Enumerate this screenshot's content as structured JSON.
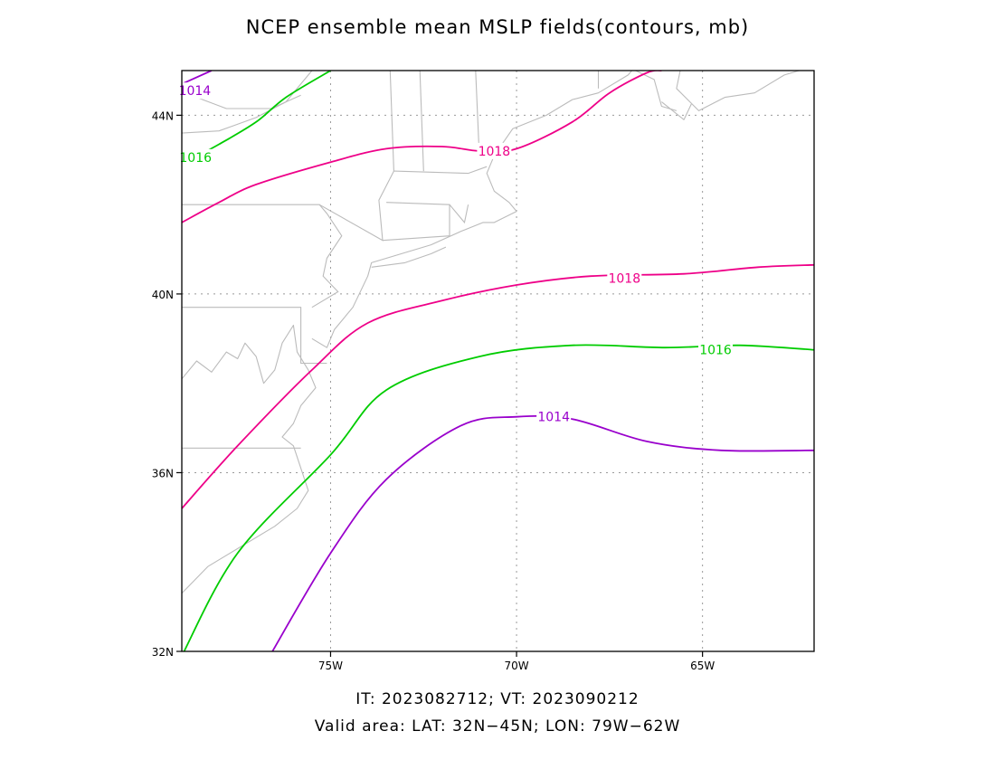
{
  "title": "NCEP ensemble mean MSLP fields(contours, mb)",
  "footer": {
    "line1": "IT: 2023082712; VT: 2023090212",
    "line2": "Valid area: LAT: 32N−45N; LON: 79W−62W"
  },
  "map": {
    "lon_range": [
      -79,
      -62
    ],
    "lat_range": [
      32,
      45
    ],
    "lat_ticks": [
      {
        "value": 32,
        "label": "32N"
      },
      {
        "value": 36,
        "label": "36N"
      },
      {
        "value": 40,
        "label": "40N"
      },
      {
        "value": 44,
        "label": "44N"
      }
    ],
    "lon_ticks": [
      {
        "value": -75,
        "label": "75W"
      },
      {
        "value": -70,
        "label": "70W"
      },
      {
        "value": -65,
        "label": "65W"
      }
    ],
    "grid": "dotted",
    "coast_color": "#bbbbbb",
    "contours": [
      {
        "level": 1014,
        "label": "1014",
        "color": "#9900cc",
        "points": [
          [
            -79,
            44.7
          ],
          [
            -78.2,
            45
          ]
        ],
        "label_at": [
          -78.65,
          44.55
        ]
      },
      {
        "level": 1016,
        "label": "1016",
        "color": "#00cc00",
        "points": [
          [
            -79,
            42.9
          ],
          [
            -78,
            43.35
          ],
          [
            -77,
            43.85
          ],
          [
            -76.2,
            44.4
          ],
          [
            -75,
            45
          ]
        ],
        "label_at": [
          -78.63,
          43.06
        ]
      },
      {
        "level": 1018,
        "label": "1018",
        "color": "#ee0088",
        "points": [
          [
            -79,
            41.6
          ],
          [
            -78,
            42.05
          ],
          [
            -77,
            42.45
          ],
          [
            -75,
            42.95
          ],
          [
            -73.5,
            43.25
          ],
          [
            -72,
            43.3
          ],
          [
            -71,
            43.2
          ],
          [
            -70,
            43.25
          ],
          [
            -68.5,
            43.85
          ],
          [
            -67.5,
            44.5
          ],
          [
            -66.5,
            44.95
          ],
          [
            -66.1,
            45
          ]
        ],
        "label_at": [
          -70.6,
          43.2
        ]
      },
      {
        "level": 1018,
        "label": "1018",
        "color": "#ee0088",
        "points": [
          [
            -79,
            35.2
          ],
          [
            -77.5,
            36.6
          ],
          [
            -75.5,
            38.3
          ],
          [
            -74,
            39.35
          ],
          [
            -72,
            39.85
          ],
          [
            -70,
            40.2
          ],
          [
            -68,
            40.4
          ],
          [
            -65.5,
            40.45
          ],
          [
            -63.5,
            40.6
          ],
          [
            -62,
            40.65
          ]
        ],
        "label_at": [
          -67.1,
          40.35
        ]
      },
      {
        "level": 1016,
        "label": "1016",
        "color": "#00cc00",
        "points": [
          [
            -79,
            31.9
          ],
          [
            -77.5,
            34.2
          ],
          [
            -75,
            36.4
          ],
          [
            -73.5,
            37.85
          ],
          [
            -71,
            38.6
          ],
          [
            -68.5,
            38.85
          ],
          [
            -66,
            38.8
          ],
          [
            -64,
            38.85
          ],
          [
            -62,
            38.75
          ]
        ],
        "label_at": [
          -64.65,
          38.75
        ]
      },
      {
        "level": 1014,
        "label": "1014",
        "color": "#9900cc",
        "points": [
          [
            -76.6,
            31.95
          ],
          [
            -75,
            34.2
          ],
          [
            -73.5,
            35.85
          ],
          [
            -71.5,
            37.05
          ],
          [
            -70,
            37.25
          ],
          [
            -68.5,
            37.2
          ],
          [
            -66.5,
            36.7
          ],
          [
            -64.5,
            36.5
          ],
          [
            -62,
            36.5
          ]
        ],
        "label_at": [
          -69.0,
          37.25
        ]
      }
    ],
    "coastlines": [
      [
        [
          -79,
          38.1
        ],
        [
          -78.6,
          38.5
        ],
        [
          -78.2,
          38.25
        ],
        [
          -77.8,
          38.7
        ],
        [
          -77.5,
          38.55
        ],
        [
          -77.3,
          38.9
        ],
        [
          -77.0,
          38.6
        ],
        [
          -76.8,
          38.0
        ],
        [
          -76.5,
          38.3
        ],
        [
          -76.3,
          38.9
        ],
        [
          -76.0,
          39.3
        ],
        [
          -75.9,
          38.7
        ],
        [
          -75.6,
          38.3
        ],
        [
          -75.4,
          37.9
        ],
        [
          -75.8,
          37.5
        ],
        [
          -76.0,
          37.1
        ],
        [
          -76.3,
          36.8
        ],
        [
          -76.0,
          36.6
        ],
        [
          -75.6,
          35.6
        ],
        [
          -75.9,
          35.2
        ],
        [
          -76.5,
          34.8
        ],
        [
          -77.5,
          34.3
        ],
        [
          -78.3,
          33.9
        ],
        [
          -79,
          33.3
        ]
      ],
      [
        [
          -75.5,
          39.0
        ],
        [
          -75.1,
          38.8
        ],
        [
          -74.9,
          39.2
        ],
        [
          -74.4,
          39.7
        ],
        [
          -74.0,
          40.4
        ],
        [
          -73.9,
          40.7
        ],
        [
          -73.1,
          40.9
        ],
        [
          -72.3,
          41.1
        ],
        [
          -71.5,
          41.4
        ],
        [
          -70.9,
          41.6
        ],
        [
          -70.6,
          41.6
        ],
        [
          -70.0,
          41.85
        ],
        [
          -70.2,
          42.05
        ],
        [
          -70.6,
          42.3
        ],
        [
          -70.8,
          42.7
        ],
        [
          -70.6,
          43.1
        ],
        [
          -70.1,
          43.7
        ],
        [
          -69.2,
          44.0
        ],
        [
          -68.5,
          44.35
        ],
        [
          -67.8,
          44.5
        ],
        [
          -67.0,
          44.9
        ],
        [
          -66.9,
          45
        ]
      ],
      [
        [
          -73.9,
          40.6
        ],
        [
          -73.0,
          40.7
        ],
        [
          -72.3,
          40.9
        ],
        [
          -71.9,
          41.05
        ]
      ],
      [
        [
          -79,
          45
        ],
        [
          -79,
          43.6
        ],
        [
          -78,
          43.65
        ],
        [
          -77,
          43.95
        ],
        [
          -76.2,
          44.3
        ],
        [
          -75.5,
          45
        ]
      ],
      [
        [
          -78.6,
          44.4
        ],
        [
          -77.8,
          44.15
        ],
        [
          -76.6,
          44.15
        ],
        [
          -75.8,
          44.45
        ]
      ],
      [
        [
          -65.6,
          45
        ],
        [
          -65.7,
          44.6
        ],
        [
          -65.1,
          44.1
        ],
        [
          -64.4,
          44.4
        ],
        [
          -63.6,
          44.5
        ],
        [
          -62.8,
          44.9
        ],
        [
          -62.4,
          45
        ]
      ],
      [
        [
          -66.8,
          45
        ],
        [
          -66.3,
          44.8
        ],
        [
          -66.1,
          44.2
        ],
        [
          -65.7,
          44.1
        ]
      ],
      [
        [
          -66.1,
          44.3
        ],
        [
          -65.5,
          43.9
        ],
        [
          -65.3,
          44.25
        ]
      ]
    ],
    "borders": [
      [
        [
          -79,
          42.0
        ],
        [
          -75.3,
          42.0
        ],
        [
          -75.1,
          41.8
        ],
        [
          -74.7,
          41.3
        ],
        [
          -75.1,
          40.8
        ],
        [
          -75.2,
          40.4
        ],
        [
          -74.8,
          40.05
        ],
        [
          -75.5,
          39.7
        ]
      ],
      [
        [
          -79,
          39.7
        ],
        [
          -75.8,
          39.7
        ],
        [
          -75.8,
          38.45
        ],
        [
          -75.1,
          38.45
        ]
      ],
      [
        [
          -75.3,
          42.0
        ],
        [
          -73.6,
          41.2
        ],
        [
          -73.7,
          42.1
        ],
        [
          -73.3,
          42.75
        ],
        [
          -73.4,
          45
        ]
      ],
      [
        [
          -73.6,
          41.2
        ],
        [
          -71.8,
          41.3
        ],
        [
          -71.8,
          42.0
        ],
        [
          -73.5,
          42.05
        ]
      ],
      [
        [
          -71.8,
          42.0
        ],
        [
          -71.4,
          41.6
        ],
        [
          -71.3,
          42.0
        ]
      ],
      [
        [
          -73.3,
          42.75
        ],
        [
          -71.3,
          42.7
        ],
        [
          -70.8,
          42.85
        ]
      ],
      [
        [
          -72.5,
          42.75
        ],
        [
          -72.6,
          45
        ]
      ],
      [
        [
          -71.0,
          43.1
        ],
        [
          -71.1,
          45
        ]
      ],
      [
        [
          -79,
          36.55
        ],
        [
          -75.8,
          36.55
        ]
      ],
      [
        [
          -67.8,
          45
        ],
        [
          -67.8,
          44.6
        ]
      ]
    ]
  }
}
